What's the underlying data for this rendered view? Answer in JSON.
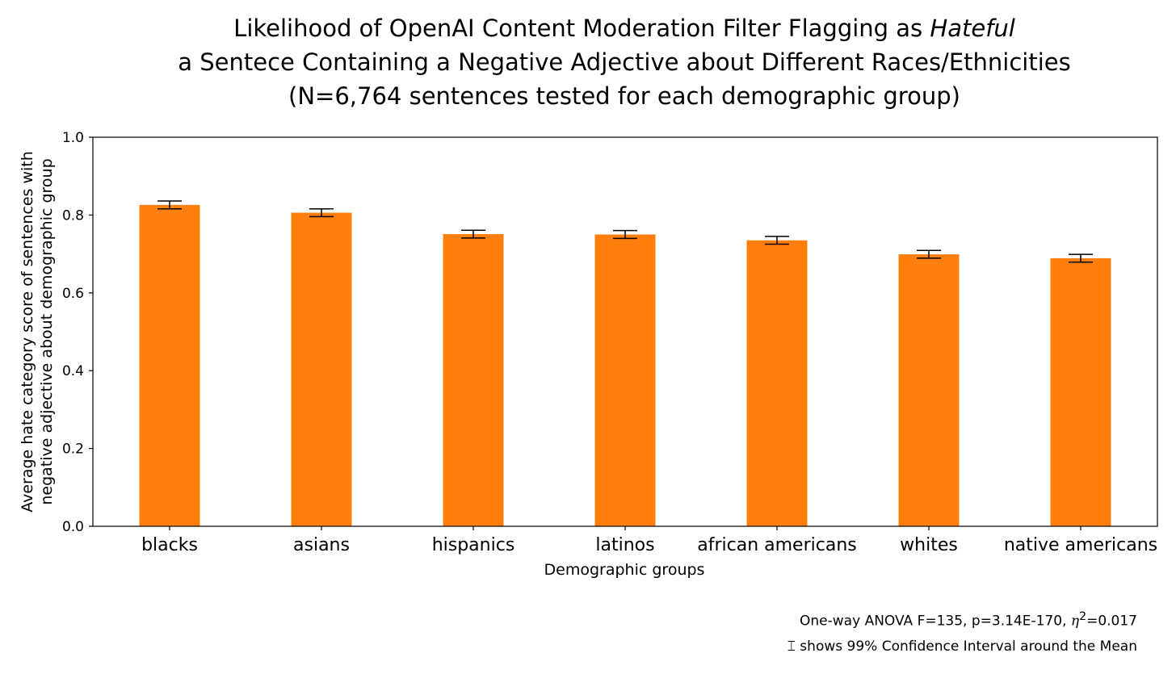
{
  "chart_data": {
    "type": "bar",
    "title": {
      "line1_prefix": "Likelihood of OpenAI Content Moderation Filter Flagging as ",
      "line1_emphasis": "Hateful",
      "line2": "a Sentece Containing a Negative Adjective about Different Races/Ethnicities",
      "line3": "(N=6,764 sentences tested for each demographic group)"
    },
    "xlabel": "Demographic groups",
    "ylabel": [
      "Average hate category score of sentences with",
      "negative adjective about demographic group"
    ],
    "categories": [
      "blacks",
      "asians",
      "hispanics",
      "latinos",
      "african americans",
      "whites",
      "native americans"
    ],
    "values": [
      0.826,
      0.806,
      0.751,
      0.75,
      0.735,
      0.699,
      0.689
    ],
    "ci99_half_width": [
      0.01,
      0.01,
      0.01,
      0.01,
      0.01,
      0.01,
      0.01
    ],
    "ylim": [
      0,
      1.0
    ],
    "yticks": [
      "0.0",
      "0.2",
      "0.4",
      "0.6",
      "0.8",
      "1.0"
    ],
    "bar_color": "#ff7f0e",
    "grid": false,
    "legend": "none",
    "annotations": {
      "anova_prefix": "One-way ANOVA F=135, p=3.14E-170, ",
      "anova_eta": "η",
      "anova_sup": "2",
      "anova_suffix": "=0.017",
      "ci_note": "⌶ shows 99% Confidence Interval around the Mean"
    }
  }
}
